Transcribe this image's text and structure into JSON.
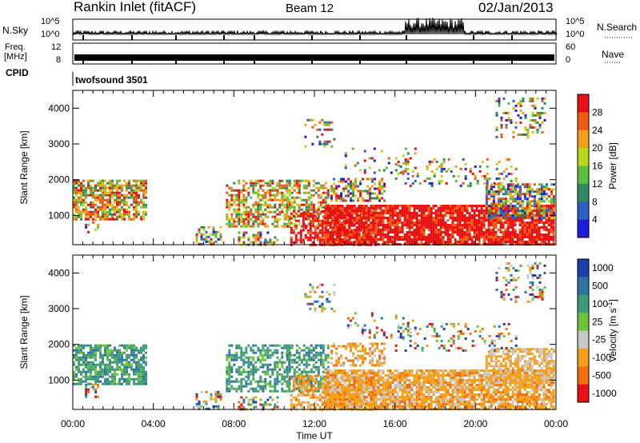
{
  "header": {
    "station": "Rankin Inlet (fitACF)",
    "beam": "Beam 12",
    "date": "02/Jan/2013"
  },
  "nsky_panel": {
    "left_label": "N.Sky",
    "right_label": "N.Search",
    "left_ticks": [
      "10^5",
      "10^0"
    ],
    "right_ticks": [
      "10^5",
      "10^0"
    ]
  },
  "freq_panel": {
    "left_label_1": "Freq.",
    "left_label_2": "[MHz]",
    "right_label": "Nave",
    "left_ticks": [
      "12",
      "8"
    ],
    "right_ticks": [
      "60",
      "0"
    ]
  },
  "cpid_panel": {
    "label": "CPID",
    "value": "twofsound 3501"
  },
  "chart_data": [
    {
      "type": "heatmap",
      "quantity": "Power",
      "ylabel": "Slant Range [km]",
      "xlim": [
        "00:00",
        "24:00"
      ],
      "ylim": [
        180,
        4500
      ],
      "yticks": [
        1000,
        2000,
        3000,
        4000
      ],
      "colorbar": {
        "label": "Power [dB]",
        "ticks": [
          28,
          24,
          20,
          16,
          12,
          8,
          4
        ],
        "colors": [
          "#e81010",
          "#f05a14",
          "#f5a018",
          "#b8d81c",
          "#5cbf3c",
          "#2f8a5e",
          "#2b5fc0",
          "#1c1cdd"
        ]
      }
    },
    {
      "type": "heatmap",
      "quantity": "Velocity",
      "ylabel": "Slant Range [km]",
      "xlabel": "Time UT",
      "xticks": [
        "00:00",
        "04:00",
        "08:00",
        "12:00",
        "16:00",
        "20:00",
        "00:00"
      ],
      "xlim": [
        "00:00",
        "24:00"
      ],
      "ylim": [
        180,
        4500
      ],
      "yticks": [
        1000,
        2000,
        3000,
        4000
      ],
      "colorbar": {
        "label": "Velocity [m s^-1]",
        "ticks": [
          "1000",
          "500",
          "100",
          "25",
          "-25",
          "-100",
          "-500",
          "-1000"
        ],
        "colors": [
          "#1c3fa8",
          "#2e73a3",
          "#3f9a7a",
          "#6cc43a",
          "#c8c8c8",
          "#f5a018",
          "#f07010",
          "#e81010"
        ]
      }
    }
  ]
}
